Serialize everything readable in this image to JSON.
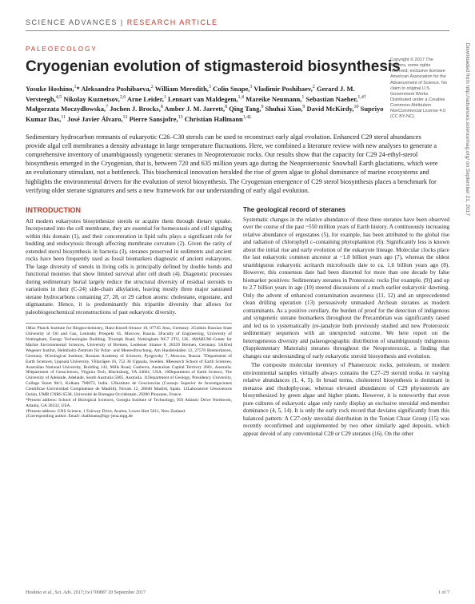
{
  "header": {
    "journal": "SCIENCE ADVANCES",
    "separator": " | ",
    "article_type": "RESEARCH ARTICLE"
  },
  "category": "PALEOECOLOGY",
  "title": "Cryogenian evolution of stigmasteroid biosynthesis",
  "authors_html": "Yosuke Hoshino,<sup>1</sup>* Aleksandra Poshibaeva,<sup>2</sup> William Meredith,<sup>3</sup> Colin Snape,<sup>3</sup> Vladimir Poshibaev,<sup>2</sup> Gerard J. M. Versteegh,<sup>4,5</sup> Nikolay Kuznetsov,<sup>2,6</sup> Arne Leider,<sup>1</sup> Lennart van Maldegem,<sup>1,4</sup> Mareike Neumann,<sup>1</sup> Sebastian Naeher,<sup>1,4†</sup> Małgorzata Moczydłowska,<sup>7</sup> Jochen J. Brocks,<sup>8</sup> Amber J. M. Jarrett,<sup>8</sup> Qing Tang,<sup>9</sup> Shuhai Xiao,<sup>9</sup> David McKirdy,<sup>10</sup> Supriyo Kumar Das,<sup>11</sup> José Javier Álvaro,<sup>12</sup> Pierre Sansjofre,<sup>13</sup> Christian Hallmann<sup>1,4‡</sup>",
  "abstract": "Sedimentary hydrocarbon remnants of eukaryotic C26–C30 sterols can be used to reconstruct early algal evolution. Enhanced C29 sterol abundances provide algal cell membranes a density advantage in large temperature fluctuations. Here, we combined a literature review with new analyses to generate a comprehensive inventory of unambiguously syngenetic steranes in Neoproterozoic rocks. Our results show that the capacity for C29 24-ethyl-sterol biosynthesis emerged in the Cryogenian, that is, between 720 and 635 million years ago during the Neoproterozoic Snowball Earth glaciations, which were an evolutionary stimulant, not a bottleneck. This biochemical innovation heralded the rise of green algae to global dominance of marine ecosystems and highlights the environmental drivers for the evolution of sterol biosynthesis. The Cryogenian emergence of C29 sterol biosynthesis places a benchmark for verifying older sterane signatures and sets a new framework for our understanding of early algal evolution.",
  "copyright": "Copyright © 2017 The Authors, some rights reserved; exclusive licensee American Association for the Advancement of Science. No claim to original U.S. Government Works. Distributed under a Creative Commons Attribution NonCommercial License 4.0 (CC BY-NC).",
  "left_col": {
    "heading": "INTRODUCTION",
    "body": "All modern eukaryotes biosynthesize sterols or acquire them through dietary uptake. Incorporated into the cell membrane, they are essential for homeostasis and cell signaling within this domain (1), and their concentration in lipid rafts plays a significant role for budding and endocytosis through affecting membrane curvature (2). Given the rarity of extended sterol biosynthesis in bacteria (3), steranes preserved in sediments and ancient rocks have been frequently used as fossil biomarkers diagnostic of ancient eukaryotes. The large diversity of sterols in living cells is principally defined by double bonds and functional moieties that show limited survival after cell death (4). Diagenetic processes during sedimentary burial largely reduce the structural diversity of residual steroids to variations in their (C-24) side-chain alkylation, leaving mostly three major saturated sterane hydrocarbons containing 27, 28, or 29 carbon atoms: cholestane, ergostane, and stigmastane. Hence, it is predominantly this tripartite diversity that allows for paleobiogeochemical reconstructions of past eukaryotic diversity."
  },
  "right_col": {
    "subheading": "The geological record of steranes",
    "body1": "Systematic changes in the relative abundance of these three steranes have been observed over the course of the past ~550 million years of Earth history. A continuously increasing relative abundance of ergostanes (5), for example, has been attributed to the global rise and radiation of chlorophyll c–containing phytoplankton (6). Significantly less is known about the initial rise and early evolution of the eukaryote lineage. Molecular clocks place the last eukaryotic common ancestor at ~1.8 billion years ago (7), whereas the oldest unambiguous eukaryotic acritarch microfossils date to ca. 1.6 billion years ago (8). However, this consensus date had been distorted for more than one decade by false biomarker positives: Sedimentary steranes in Proterozoic rocks [for example, (9)] and up to 2.7 billion years in age (10) steered discussions of a much earlier eukaryotic dawning. Only the advent of enhanced contamination awareness (11, 12) and an unprecedented clean drilling operation (13) persuasively unmasked Archean steranes as modern contaminants. As a positive corollary, the burden of proof for the detection of indigenous and syngenetic sterane biomarkers throughout the Precambrian was significantly raised and led us to systematically (re-)analyze both previously studied and new Proterozoic sedimentary sequences with an unexpected outcome. We here report on the heterogeneous diversity and palaeogeographic distribution of unambiguously indigenous (Supplementary Materials) steranes throughout the Neoproterozoic, a finding that changes our understanding of early eukaryotic steroid biosynthesis and evolution.",
    "body2": "The composite molecular inventory of Phanerozoic rocks, petroleum, or modern environmental samples virtually always contains the C27–29 steroid troika in varying relative abundances (1, 4, 5). In broad terms, cholesterol biosynthesis is dominant in metazoa and rhodophyceae, whereas elevated abundances of C29 phytosterols are biosynthesized by green algae and higher plants. However, it is noteworthy that even pure cultures of eukaryotic algae only rarely display an exclusive steroidal end-member dominance (4, 5, 14). It is only the early rock record that deviates significantly from this balanced pattern: A C27-only steroidal distribution in the Tonian Chuar Group (15) was recently reconfirmed and supplemented by two other similarly aged deposits, which appear devoid of any conventional C28 or C29 steranes (16). On the other"
  },
  "affiliations": "1Max Planck Institute for Biogeochemistry, Hans-Knoell-Strasse 10, 07745 Jena, Germany. 2Gubkin Russian State University of Oil and Gas, Leninsky Prospekt 65, Moscow, Russia. 3Faculty of Engineering, University of Nottingham, Energy Technologies Building, Triumph Road, Nottingham NG7 2TU, UK. 4MARUM–Center for Marine Environmental Sciences, University of Bremen, Leobener Strasse 8, 28359 Bremen, Germany. 5Alfred Wegener Institut, Helmholtz-Zentrum für Polar- und Meeresforschung, Am Handelshafen 12, 27570 Bremerhaven, Germany. 6Geological Institute, Russian Academy of Sciences, Pyzgevsky 7, Moscow, Russia. 7Department of Earth Sciences, Uppsala University, Villavägen 16, 752 36 Uppsala, Sweden. 8Research School of Earth Sciences, Australian National University, Building 142, Mills Road, Canberra, Australian Capital Territory 2601, Australia. 9Department of Geosciences, Virginia Tech, Blacksburg, VA 24061, USA. 10Department of Earth Science, The University of Adelaide, Adelaide, South Australia 5005, Australia. 11Department of Geology, Presidency University, College Street 86/1, Kolkata 700073, India. 12Instituto de Geociencias (Consejo Superior de Investigaciones Científicas–Universidad Complutense de Madrid), Novais 12, 28040 Madrid, Spain. 13Laboratoire Géosciences Océan, UMR CNRS 6538, Université de Bretagne Occidentale, 29280 Plouzane, France.\n*Present address: School of Biological Sciences, Georgia Institute of Technology, 950 Atlantic Drive Northwest, Atlanta, GA 30332, USA.\n†Present address: GNS Science, 1 Fairway Drive, Avalon, Lower Hutt 5011, New Zealand.\n‡Corresponding author. Email: challmann@bgc-jena.mpg.de",
  "footer": {
    "left": "Hoshino et al., Sci. Adv. 2017;3:e1700887   20 September 2017",
    "right": "1 of 7"
  },
  "sidebar": "Downloaded from http://advances.sciencemag.org/ on September 21, 2017",
  "colors": {
    "accent_red": "#c0392b",
    "text": "#222222",
    "muted": "#555555",
    "rule": "#888888"
  }
}
